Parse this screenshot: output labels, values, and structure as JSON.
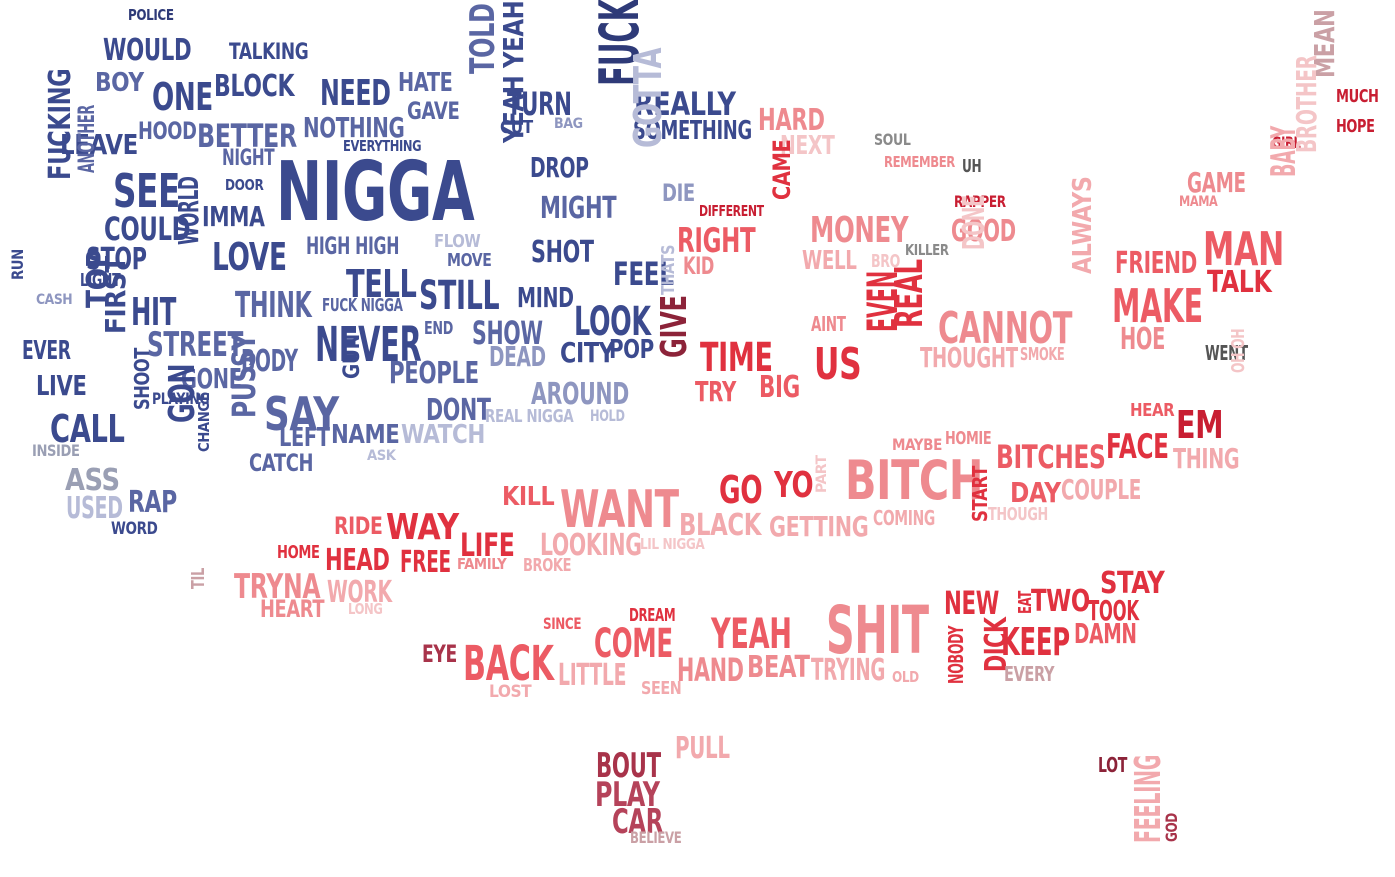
{
  "palette": {
    "navy_dark": "#2e3a78",
    "navy": "#3b4a8e",
    "navy_mid": "#5a66a3",
    "navy_light": "#8e96c0",
    "navy_pale": "#b6bbd7",
    "gray_blue": "#9a9fb4",
    "gray": "#8a8a8a",
    "dark_gray": "#555555",
    "crimson": "#c81e32",
    "red": "#e0313f",
    "red_light": "#ec5b64",
    "salmon": "#ee8a8f",
    "pink": "#f2a9ad",
    "pink_pale": "#f4c5c7",
    "rose_dark": "#b5435a",
    "rose_gray": "#caa0a5",
    "maroon": "#8c2339",
    "dark_rose": "#a8334a"
  },
  "words": [
    {
      "text": "POLICE",
      "color": "navy_dark"
    },
    {
      "text": "WOULD",
      "color": "navy"
    },
    {
      "text": "TALKING",
      "color": "navy"
    },
    {
      "text": "BOY",
      "color": "navy_mid"
    },
    {
      "text": "ONE",
      "color": "navy"
    },
    {
      "text": "BLOCK",
      "color": "navy"
    },
    {
      "text": "NEED",
      "color": "navy"
    },
    {
      "text": "HATE",
      "color": "navy_mid"
    },
    {
      "text": "GAVE",
      "color": "navy_mid"
    },
    {
      "text": "TOLD",
      "color": "navy_mid"
    },
    {
      "text": "TURN",
      "color": "navy"
    },
    {
      "text": "CUT",
      "color": "navy"
    },
    {
      "text": "BAG",
      "color": "navy_light"
    },
    {
      "text": "FUCK",
      "color": "navy_dark"
    },
    {
      "text": "REALLY",
      "color": "navy"
    },
    {
      "text": "SOMETHING",
      "color": "navy"
    },
    {
      "text": "HARD",
      "color": "salmon"
    },
    {
      "text": "NEXT",
      "color": "pink_pale"
    },
    {
      "text": "SOUL",
      "color": "gray"
    },
    {
      "text": "REMEMBER",
      "color": "salmon"
    },
    {
      "text": "UH",
      "color": "dark_gray"
    },
    {
      "text": "LEAVE",
      "color": "navy"
    },
    {
      "text": "HOOD",
      "color": "navy_mid"
    },
    {
      "text": "BETTER",
      "color": "navy_mid"
    },
    {
      "text": "NOTHING",
      "color": "navy_mid"
    },
    {
      "text": "EVERYTHING",
      "color": "navy"
    },
    {
      "text": "NIGHT",
      "color": "navy_mid"
    },
    {
      "text": "SEE",
      "color": "navy"
    },
    {
      "text": "NIGGA",
      "color": "navy"
    },
    {
      "text": "YEAH YEAH",
      "color": "navy"
    },
    {
      "text": "DROP",
      "color": "navy"
    },
    {
      "text": "GOTTA",
      "color": "navy_pale"
    },
    {
      "text": "DIE",
      "color": "navy_light"
    },
    {
      "text": "DIFFERENT",
      "color": "crimson"
    },
    {
      "text": "CAME",
      "color": "red"
    },
    {
      "text": "RAPPER",
      "color": "crimson"
    },
    {
      "text": "GOOD",
      "color": "salmon"
    },
    {
      "text": "GIRL",
      "color": "crimson"
    },
    {
      "text": "MUCH",
      "color": "crimson"
    },
    {
      "text": "HOPE",
      "color": "crimson"
    },
    {
      "text": "MEAN",
      "color": "rose_gray"
    },
    {
      "text": "GAME",
      "color": "salmon"
    },
    {
      "text": "MAMA",
      "color": "salmon"
    },
    {
      "text": "BABY",
      "color": "pink"
    },
    {
      "text": "BROTHER",
      "color": "pink_pale"
    },
    {
      "text": "FUCKING",
      "color": "navy"
    },
    {
      "text": "ANOTHER",
      "color": "navy_mid"
    },
    {
      "text": "DOOR",
      "color": "navy"
    },
    {
      "text": "COULD",
      "color": "navy"
    },
    {
      "text": "IMMA",
      "color": "navy"
    },
    {
      "text": "HIGH HIGH",
      "color": "navy_mid"
    },
    {
      "text": "FLOW",
      "color": "navy_pale"
    },
    {
      "text": "MOVE",
      "color": "navy_mid"
    },
    {
      "text": "MIGHT",
      "color": "navy_mid"
    },
    {
      "text": "SHOT",
      "color": "navy"
    },
    {
      "text": "RIGHT",
      "color": "red_light"
    },
    {
      "text": "KID",
      "color": "salmon"
    },
    {
      "text": "MONEY",
      "color": "salmon"
    },
    {
      "text": "WELL",
      "color": "pink"
    },
    {
      "text": "BRO",
      "color": "pink_pale"
    },
    {
      "text": "KILLER",
      "color": "gray"
    },
    {
      "text": "DONE",
      "color": "pink_pale"
    },
    {
      "text": "FRIEND",
      "color": "red_light"
    },
    {
      "text": "MAN",
      "color": "red_light"
    },
    {
      "text": "TALK",
      "color": "red"
    },
    {
      "text": "STOP",
      "color": "navy"
    },
    {
      "text": "LIGHT",
      "color": "navy"
    },
    {
      "text": "WORLD",
      "color": "navy"
    },
    {
      "text": "LOVE",
      "color": "navy"
    },
    {
      "text": "TELL",
      "color": "navy"
    },
    {
      "text": "FEEL",
      "color": "navy"
    },
    {
      "text": "RUN",
      "color": "navy"
    },
    {
      "text": "CASH",
      "color": "navy_light"
    },
    {
      "text": "HIT",
      "color": "navy"
    },
    {
      "text": "THINK",
      "color": "navy_mid"
    },
    {
      "text": "FUCK NIGGA",
      "color": "navy_mid"
    },
    {
      "text": "STILL",
      "color": "navy"
    },
    {
      "text": "MIND",
      "color": "navy"
    },
    {
      "text": "THATS",
      "color": "navy_pale"
    },
    {
      "text": "AINT",
      "color": "salmon"
    },
    {
      "text": "ALWAYS",
      "color": "pink"
    },
    {
      "text": "MAKE",
      "color": "red_light"
    },
    {
      "text": "HOE",
      "color": "salmon"
    },
    {
      "text": "TOP",
      "color": "navy"
    },
    {
      "text": "EVER",
      "color": "navy"
    },
    {
      "text": "FIRST",
      "color": "navy"
    },
    {
      "text": "STREET",
      "color": "navy_mid"
    },
    {
      "text": "BODY",
      "color": "navy_mid"
    },
    {
      "text": "NEVER",
      "color": "navy"
    },
    {
      "text": "END",
      "color": "navy_mid"
    },
    {
      "text": "SHOW",
      "color": "navy_mid"
    },
    {
      "text": "LOOK",
      "color": "navy"
    },
    {
      "text": "CITY",
      "color": "navy"
    },
    {
      "text": "POP",
      "color": "navy"
    },
    {
      "text": "GIVE",
      "color": "maroon"
    },
    {
      "text": "TIME",
      "color": "red"
    },
    {
      "text": "US",
      "color": "red"
    },
    {
      "text": "EVEN",
      "color": "red"
    },
    {
      "text": "REAL",
      "color": "red"
    },
    {
      "text": "CANNOT",
      "color": "salmon"
    },
    {
      "text": "THOUGHT",
      "color": "pink"
    },
    {
      "text": "SMOKE",
      "color": "pink"
    },
    {
      "text": "WENT",
      "color": "dark_gray"
    },
    {
      "text": "OH OH",
      "color": "pink_pale"
    },
    {
      "text": "LIVE",
      "color": "navy"
    },
    {
      "text": "GONE",
      "color": "navy_mid"
    },
    {
      "text": "PEOPLE",
      "color": "navy_mid"
    },
    {
      "text": "DEAD",
      "color": "navy_light"
    },
    {
      "text": "AROUND",
      "color": "navy_light"
    },
    {
      "text": "TRY",
      "color": "red_light"
    },
    {
      "text": "BIG",
      "color": "red_light"
    },
    {
      "text": "PLAYING",
      "color": "navy"
    },
    {
      "text": "SAY",
      "color": "navy_mid"
    },
    {
      "text": "GUN",
      "color": "navy"
    },
    {
      "text": "DONT",
      "color": "navy_mid"
    },
    {
      "text": "REAL NIGGA",
      "color": "navy_pale"
    },
    {
      "text": "HOLD",
      "color": "navy_pale"
    },
    {
      "text": "HEAR",
      "color": "red_light"
    },
    {
      "text": "EM",
      "color": "crimson"
    },
    {
      "text": "CALL",
      "color": "navy"
    },
    {
      "text": "SHOOT",
      "color": "navy"
    },
    {
      "text": "GON",
      "color": "navy"
    },
    {
      "text": "LEFT",
      "color": "navy_mid"
    },
    {
      "text": "NAME",
      "color": "navy_mid"
    },
    {
      "text": "WATCH",
      "color": "navy_pale"
    },
    {
      "text": "INSIDE",
      "color": "gray_blue"
    },
    {
      "text": "CHANGE",
      "color": "navy"
    },
    {
      "text": "PUSSY",
      "color": "navy_mid"
    },
    {
      "text": "CATCH",
      "color": "navy_mid"
    },
    {
      "text": "ASK",
      "color": "navy_pale"
    },
    {
      "text": "MAYBE",
      "color": "salmon"
    },
    {
      "text": "HOMIE",
      "color": "salmon"
    },
    {
      "text": "BITCHES",
      "color": "red_light"
    },
    {
      "text": "FACE",
      "color": "red"
    },
    {
      "text": "THING",
      "color": "pink"
    },
    {
      "text": "ASS",
      "color": "gray_blue"
    },
    {
      "text": "PART",
      "color": "pink_pale"
    },
    {
      "text": "BITCH",
      "color": "salmon"
    },
    {
      "text": "START",
      "color": "red"
    },
    {
      "text": "DAY",
      "color": "red_light"
    },
    {
      "text": "COUPLE",
      "color": "pink"
    },
    {
      "text": "USED",
      "color": "navy_pale"
    },
    {
      "text": "RAP",
      "color": "navy_mid"
    },
    {
      "text": "KILL",
      "color": "red_light"
    },
    {
      "text": "WANT",
      "color": "salmon"
    },
    {
      "text": "GO",
      "color": "red"
    },
    {
      "text": "YO",
      "color": "red"
    },
    {
      "text": "WORD",
      "color": "navy"
    },
    {
      "text": "RIDE",
      "color": "red_light"
    },
    {
      "text": "WAY",
      "color": "red"
    },
    {
      "text": "BLACK",
      "color": "pink"
    },
    {
      "text": "GETTING",
      "color": "pink"
    },
    {
      "text": "COMING",
      "color": "pink"
    },
    {
      "text": "THOUGH",
      "color": "pink_pale"
    },
    {
      "text": "LIFE",
      "color": "red"
    },
    {
      "text": "LOOKING",
      "color": "pink"
    },
    {
      "text": "LIL NIGGA",
      "color": "pink_pale"
    },
    {
      "text": "HOME",
      "color": "red"
    },
    {
      "text": "HEAD",
      "color": "red"
    },
    {
      "text": "FREE",
      "color": "red"
    },
    {
      "text": "FAMILY",
      "color": "salmon"
    },
    {
      "text": "BROKE",
      "color": "pink"
    },
    {
      "text": "TIL",
      "color": "rose_gray"
    },
    {
      "text": "TRYNA",
      "color": "salmon"
    },
    {
      "text": "WORK",
      "color": "pink"
    },
    {
      "text": "HEART",
      "color": "salmon"
    },
    {
      "text": "LONG",
      "color": "pink_pale"
    },
    {
      "text": "STAY",
      "color": "red"
    },
    {
      "text": "NEW",
      "color": "red"
    },
    {
      "text": "EAT",
      "color": "red"
    },
    {
      "text": "TWO",
      "color": "red"
    },
    {
      "text": "TOOK",
      "color": "red"
    },
    {
      "text": "SINCE",
      "color": "red_light"
    },
    {
      "text": "DREAM",
      "color": "red"
    },
    {
      "text": "SHIT",
      "color": "salmon"
    },
    {
      "text": "NOBODY",
      "color": "red"
    },
    {
      "text": "DICK",
      "color": "red"
    },
    {
      "text": "KEEP",
      "color": "red"
    },
    {
      "text": "DAMN",
      "color": "red_light"
    },
    {
      "text": "EYE",
      "color": "dark_rose"
    },
    {
      "text": "COME",
      "color": "red_light"
    },
    {
      "text": "YEAH",
      "color": "red_light"
    },
    {
      "text": "BACK",
      "color": "red_light"
    },
    {
      "text": "LITTLE",
      "color": "pink"
    },
    {
      "text": "HAND",
      "color": "salmon"
    },
    {
      "text": "BEAT",
      "color": "salmon"
    },
    {
      "text": "TRYING",
      "color": "pink"
    },
    {
      "text": "OLD",
      "color": "pink"
    },
    {
      "text": "EVERY",
      "color": "rose_gray"
    },
    {
      "text": "LOST",
      "color": "pink"
    },
    {
      "text": "SEEN",
      "color": "pink"
    },
    {
      "text": "PULL",
      "color": "pink"
    },
    {
      "text": "LOT",
      "color": "maroon"
    },
    {
      "text": "BOUT",
      "color": "dark_rose"
    },
    {
      "text": "PLAY",
      "color": "rose_dark"
    },
    {
      "text": "CAR",
      "color": "rose_dark"
    },
    {
      "text": "BELIEVE",
      "color": "rose_gray"
    },
    {
      "text": "FEELING",
      "color": "pink"
    },
    {
      "text": "GOD",
      "color": "dark_rose"
    }
  ]
}
